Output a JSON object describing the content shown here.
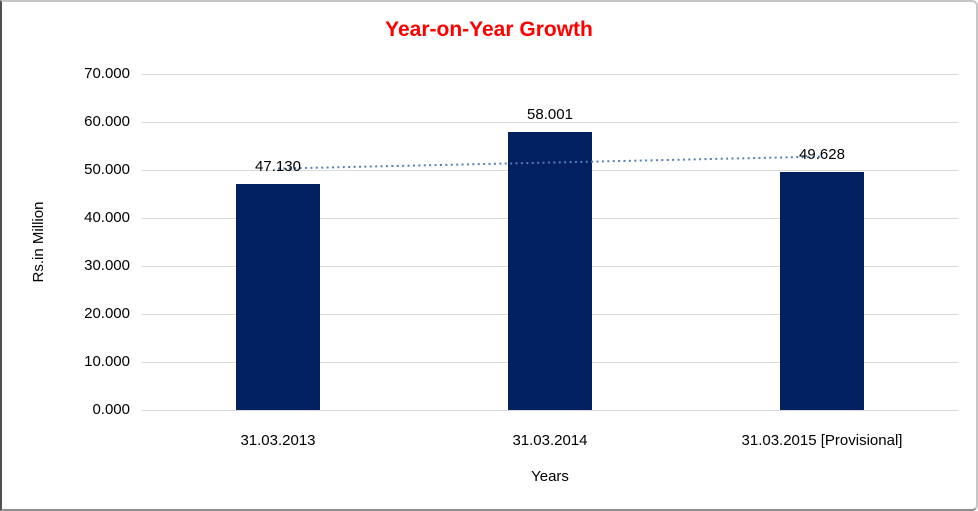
{
  "chart_data": {
    "type": "bar",
    "title": "Year-on-Year Growth",
    "title_color": "#ff0000",
    "xlabel": "Years",
    "ylabel": "Rs.in Million",
    "categories": [
      "31.03.2013",
      "31.03.2014",
      "31.03.2015 [Provisional]"
    ],
    "values": [
      47.13,
      58.001,
      49.628
    ],
    "data_labels": [
      "47.130",
      "58.001",
      "49.628"
    ],
    "bar_color": "#002060",
    "ylim": [
      0,
      70
    ],
    "y_ticks": [
      0,
      10,
      20,
      30,
      40,
      50,
      60,
      70
    ],
    "y_tick_labels": [
      "0.000",
      "10.000",
      "20.000",
      "30.000",
      "40.000",
      "50.000",
      "60.000",
      "70.000"
    ],
    "grid": true,
    "gridline_color": "#d9d9d9",
    "legend": "none",
    "trendline": {
      "type": "linear",
      "style": "dotted",
      "color": "#4f81bd",
      "start_value": 50.3,
      "end_value": 52.8
    }
  }
}
